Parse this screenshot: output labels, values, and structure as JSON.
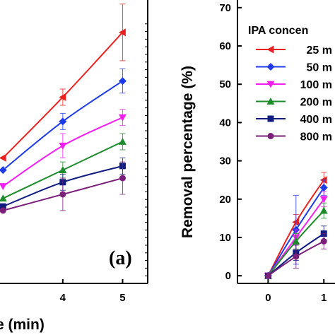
{
  "chart_data": [
    {
      "type": "line",
      "panel_label": "(a)",
      "xlabel_visible_fragment": "e (min)",
      "x_ticks": [
        "4",
        "5"
      ],
      "x": [
        3,
        4,
        5
      ],
      "xlim": [
        2.95,
        5.42
      ],
      "ylim": [
        0,
        70
      ],
      "series": [
        {
          "color": "#e8231f",
          "marker": "triangle-left",
          "values": [
            31,
            46,
            62
          ],
          "errors": [
            0,
            2,
            7
          ]
        },
        {
          "color": "#1f3be8",
          "marker": "diamond",
          "values": [
            28,
            40,
            50
          ],
          "errors": [
            0,
            2,
            3
          ]
        },
        {
          "color": "#f01ff0",
          "marker": "triangle-down",
          "values": [
            24,
            34,
            41
          ],
          "errors": [
            0,
            3,
            2
          ]
        },
        {
          "color": "#1e8c2c",
          "marker": "triangle-up",
          "values": [
            21,
            28,
            35
          ],
          "errors": [
            0,
            2,
            2
          ]
        },
        {
          "color": "#0f1c80",
          "marker": "square",
          "values": [
            19,
            25,
            29
          ],
          "errors": [
            0,
            2,
            2
          ]
        },
        {
          "color": "#7a1f7a",
          "marker": "circle",
          "values": [
            18,
            22,
            26
          ],
          "errors": [
            0,
            4,
            4
          ]
        }
      ]
    },
    {
      "type": "line",
      "ylabel": "Removal percentage (%)",
      "y_ticks": [
        "0",
        "10",
        "20",
        "30",
        "40",
        "50",
        "60",
        "70"
      ],
      "x_ticks": [
        "0",
        "1"
      ],
      "xlim": [
        -0.55,
        1.2
      ],
      "ylim": [
        -2,
        72
      ],
      "legend": {
        "title": "IPA concen",
        "placement": "top-right",
        "entries": [
          "25 m",
          "50 m",
          "100 m",
          "200 m",
          "400 m",
          "800 m"
        ]
      },
      "x": [
        0,
        0.5,
        1
      ],
      "series": [
        {
          "name": "25 m",
          "color": "#e8231f",
          "marker": "triangle-left",
          "values": [
            0,
            14,
            25
          ],
          "errors": [
            0.5,
            2,
            2
          ]
        },
        {
          "name": "50 m",
          "color": "#1f3be8",
          "marker": "diamond",
          "values": [
            0,
            12,
            23
          ],
          "errors": [
            0.5,
            9,
            2
          ]
        },
        {
          "name": "100 m",
          "color": "#f01ff0",
          "marker": "triangle-down",
          "values": [
            0,
            10,
            20
          ],
          "errors": [
            0.5,
            2,
            2
          ]
        },
        {
          "name": "200 m",
          "color": "#1e8c2c",
          "marker": "triangle-up",
          "values": [
            0,
            9,
            17
          ],
          "errors": [
            0.5,
            2,
            2
          ]
        },
        {
          "name": "400 m",
          "color": "#0f1c80",
          "marker": "square",
          "values": [
            0,
            6,
            11
          ],
          "errors": [
            0.5,
            2,
            2
          ]
        },
        {
          "name": "800 m",
          "color": "#7a1f7a",
          "marker": "circle",
          "values": [
            0,
            5,
            9
          ],
          "errors": [
            0.5,
            3,
            2
          ]
        }
      ]
    }
  ]
}
